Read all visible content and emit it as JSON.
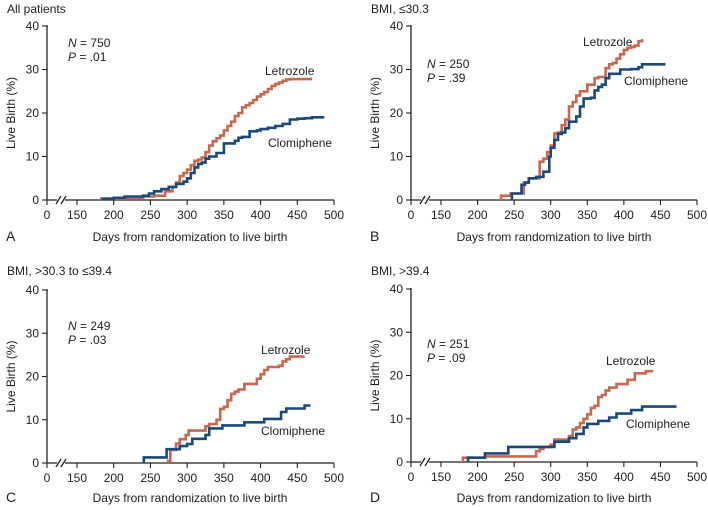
{
  "chart_data": [
    {
      "panel": "A",
      "type": "line",
      "step": true,
      "title": "All patients",
      "xlabel": "Days from randomization to live birth",
      "ylabel": "Live Birth (%)",
      "xlim": [
        0,
        500
      ],
      "ylim": [
        0,
        40
      ],
      "xticks": [
        0,
        150,
        200,
        250,
        300,
        350,
        400,
        450,
        500
      ],
      "yticks": [
        0,
        10,
        20,
        30,
        40
      ],
      "axis_break": "between 0 and 150",
      "stats": {
        "N": "750",
        "P": ".01"
      },
      "series": [
        {
          "name": "Letrozole",
          "color": "#c8684e",
          "x": [
            183,
            215,
            240,
            255,
            270,
            280,
            285,
            290,
            295,
            300,
            305,
            310,
            315,
            320,
            325,
            330,
            335,
            340,
            345,
            350,
            355,
            360,
            365,
            370,
            375,
            380,
            385,
            390,
            395,
            400,
            405,
            410,
            415,
            420,
            425,
            430,
            435,
            440,
            445,
            450,
            455,
            470
          ],
          "y": [
            0.3,
            0.5,
            0.8,
            1.0,
            2.0,
            3.0,
            4.0,
            5.5,
            6.2,
            7.0,
            8.0,
            9.0,
            9.3,
            9.8,
            11.0,
            12.5,
            13.5,
            14.2,
            14.8,
            16.0,
            17.0,
            18.0,
            19.3,
            20.0,
            21.3,
            21.8,
            22.3,
            23.0,
            23.8,
            24.3,
            24.8,
            25.5,
            26.2,
            26.7,
            27.0,
            27.4,
            27.7,
            27.8,
            27.8,
            27.8,
            27.8,
            27.8
          ]
        },
        {
          "name": "Clomiphene",
          "color": "#1a4a7a",
          "x": [
            185,
            200,
            215,
            240,
            248,
            255,
            265,
            275,
            285,
            295,
            300,
            305,
            310,
            315,
            320,
            325,
            330,
            340,
            350,
            355,
            365,
            370,
            375,
            385,
            395,
            400,
            410,
            420,
            430,
            440,
            450,
            460,
            470,
            485
          ],
          "y": [
            0.3,
            0.5,
            0.8,
            1.0,
            1.5,
            2.0,
            2.5,
            3.0,
            3.7,
            4.2,
            5.0,
            6.2,
            7.5,
            8.3,
            8.6,
            9.5,
            10.0,
            10.8,
            13.0,
            13.0,
            13.6,
            14.3,
            14.5,
            15.8,
            16.0,
            16.3,
            16.6,
            17.0,
            17.5,
            18.5,
            18.7,
            18.8,
            19.0,
            19.3
          ]
        }
      ],
      "annotations": [
        "Letrozole",
        "Clomiphene",
        "A"
      ]
    },
    {
      "panel": "B",
      "type": "line",
      "step": true,
      "title": "BMI, ≤30.3",
      "xlabel": "Days from randomization to live birth",
      "ylabel": "Live Birth (%)",
      "xlim": [
        0,
        500
      ],
      "ylim": [
        0,
        40
      ],
      "xticks": [
        0,
        150,
        200,
        250,
        300,
        350,
        400,
        450,
        500
      ],
      "yticks": [
        0,
        10,
        20,
        30,
        40
      ],
      "axis_break": "between 0 and 150",
      "stats": {
        "N": "250",
        "P": ".39"
      },
      "series": [
        {
          "name": "Letrozole",
          "color": "#c8684e",
          "x": [
            232,
            245,
            263,
            270,
            285,
            290,
            295,
            300,
            305,
            310,
            315,
            320,
            325,
            330,
            335,
            340,
            350,
            360,
            365,
            375,
            380,
            385,
            390,
            395,
            400,
            405,
            410,
            415,
            420,
            425
          ],
          "y": [
            1.0,
            1.5,
            4.0,
            5.0,
            8.8,
            9.5,
            11.0,
            12.5,
            15.3,
            15.5,
            17.2,
            18.5,
            21.5,
            22.5,
            24.0,
            25.0,
            26.5,
            28.0,
            28.3,
            30.3,
            31.2,
            31.5,
            32.5,
            33.5,
            34.5,
            35.0,
            35.2,
            35.5,
            36.5,
            37.0
          ]
        },
        {
          "name": "Clomiphene",
          "color": "#1a4a7a",
          "x": [
            247,
            260,
            265,
            270,
            280,
            290,
            298,
            300,
            305,
            310,
            315,
            320,
            325,
            335,
            340,
            345,
            355,
            360,
            365,
            370,
            375,
            380,
            395,
            410,
            420,
            425,
            440,
            457
          ],
          "y": [
            1.5,
            3.5,
            4.0,
            5.0,
            5.3,
            6.5,
            10.0,
            12.0,
            13.8,
            15.2,
            15.5,
            16.5,
            18.0,
            19.2,
            21.5,
            23.3,
            23.5,
            25.2,
            26.0,
            26.5,
            28.0,
            29.0,
            30.0,
            30.1,
            30.5,
            31.2,
            31.2,
            31.2
          ]
        }
      ],
      "annotations": [
        "Letrozole",
        "Clomiphene",
        "B"
      ]
    },
    {
      "panel": "C",
      "type": "line",
      "step": true,
      "title": "BMI, >30.3 to ≤39.4",
      "xlabel": "Days from randomization to live birth",
      "ylabel": "Live Birth (%)",
      "xlim": [
        0,
        500
      ],
      "ylim": [
        0,
        40
      ],
      "xticks": [
        0,
        150,
        200,
        250,
        300,
        350,
        400,
        450,
        500
      ],
      "yticks": [
        0,
        10,
        20,
        30,
        40
      ],
      "axis_break": "between 0 and 150",
      "stats": {
        "N": "249",
        "P": ".03"
      },
      "series": [
        {
          "name": "Letrozole",
          "color": "#c8684e",
          "x": [
            274,
            277,
            285,
            290,
            298,
            302,
            325,
            330,
            340,
            345,
            350,
            355,
            360,
            365,
            370,
            378,
            395,
            400,
            405,
            410,
            425,
            430,
            435,
            440,
            460
          ],
          "y": [
            0.5,
            3.0,
            4.5,
            5.5,
            6.5,
            7.5,
            8.5,
            9.0,
            10.0,
            12.5,
            13.0,
            14.5,
            16.0,
            16.5,
            17.0,
            18.3,
            19.5,
            20.5,
            21.5,
            22.2,
            22.5,
            23.5,
            24.0,
            24.6,
            24.6
          ]
        },
        {
          "name": "Clomiphene",
          "color": "#1a4a7a",
          "x": [
            241,
            272,
            290,
            300,
            307,
            325,
            330,
            348,
            378,
            405,
            428,
            435,
            460,
            468
          ],
          "y": [
            1.3,
            3.2,
            3.9,
            4.4,
            5.6,
            6.5,
            8.0,
            8.7,
            9.4,
            10.2,
            11.8,
            12.6,
            13.3,
            13.3
          ]
        }
      ],
      "annotations": [
        "Letrozole",
        "Clomiphene",
        "C"
      ]
    },
    {
      "panel": "D",
      "type": "line",
      "step": true,
      "title": "BMI, >39.4",
      "xlabel": "Days from randomization to live birth",
      "ylabel": "Live Birth (%)",
      "xlim": [
        0,
        500
      ],
      "ylim": [
        0,
        40
      ],
      "xticks": [
        0,
        150,
        200,
        250,
        300,
        350,
        400,
        450,
        500
      ],
      "yticks": [
        0,
        10,
        20,
        30,
        40
      ],
      "axis_break": "between 0 and 150",
      "stats": {
        "N": "251",
        "P": ".09"
      },
      "series": [
        {
          "name": "Letrozole",
          "color": "#c8684e",
          "x": [
            180,
            210,
            280,
            285,
            290,
            300,
            305,
            325,
            330,
            335,
            340,
            345,
            350,
            355,
            360,
            365,
            370,
            375,
            380,
            390,
            405,
            415,
            430,
            440
          ],
          "y": [
            1.0,
            1.3,
            2.5,
            3.0,
            3.5,
            4.0,
            5.2,
            6.0,
            7.5,
            8.0,
            9.0,
            10.0,
            11.0,
            12.5,
            13.0,
            15.0,
            15.5,
            16.5,
            17.2,
            18.0,
            19.0,
            20.5,
            21.0,
            21.0
          ]
        },
        {
          "name": "Clomiphene",
          "color": "#1a4a7a",
          "x": [
            187,
            210,
            242,
            305,
            325,
            335,
            345,
            350,
            365,
            380,
            390,
            410,
            425,
            472
          ],
          "y": [
            1.0,
            2.0,
            3.5,
            4.7,
            5.5,
            6.5,
            8.0,
            8.8,
            9.5,
            10.3,
            11.2,
            12.0,
            12.8,
            12.8
          ]
        }
      ],
      "annotations": [
        "Letrozole",
        "Clomiphene",
        "D"
      ]
    }
  ],
  "panels": [
    {
      "id": "A",
      "letter": "A",
      "title": "All patients",
      "n_label": "N",
      "n_value": " = 750",
      "p_label": "P",
      "p_value": " = .01",
      "letrozole_label": "Letrozole",
      "clomiphene_label": "Clomiphene",
      "xlabel": "Days from randomization to live birth",
      "ylabel": "Live Birth (%)"
    },
    {
      "id": "B",
      "letter": "B",
      "title": "BMI, ≤30.3",
      "n_label": "N",
      "n_value": " = 250",
      "p_label": "P",
      "p_value": " = .39",
      "letrozole_label": "Letrozole",
      "clomiphene_label": "Clomiphene",
      "xlabel": "Days from randomization to live birth",
      "ylabel": "Live Birth (%)"
    },
    {
      "id": "C",
      "letter": "C",
      "title": "BMI, >30.3 to ≤39.4",
      "n_label": "N",
      "n_value": " = 249",
      "p_label": "P",
      "p_value": " = .03",
      "letrozole_label": "Letrozole",
      "clomiphene_label": "Clomiphene",
      "xlabel": "Days from randomization to live birth",
      "ylabel": "Live Birth (%)"
    },
    {
      "id": "D",
      "letter": "D",
      "title": "BMI, >39.4",
      "n_label": "N",
      "n_value": " = 251",
      "p_label": "P",
      "p_value": " = .09",
      "letrozole_label": "Letrozole",
      "clomiphene_label": "Clomiphene",
      "xlabel": "Days from randomization to live birth",
      "ylabel": "Live Birth (%)"
    }
  ]
}
